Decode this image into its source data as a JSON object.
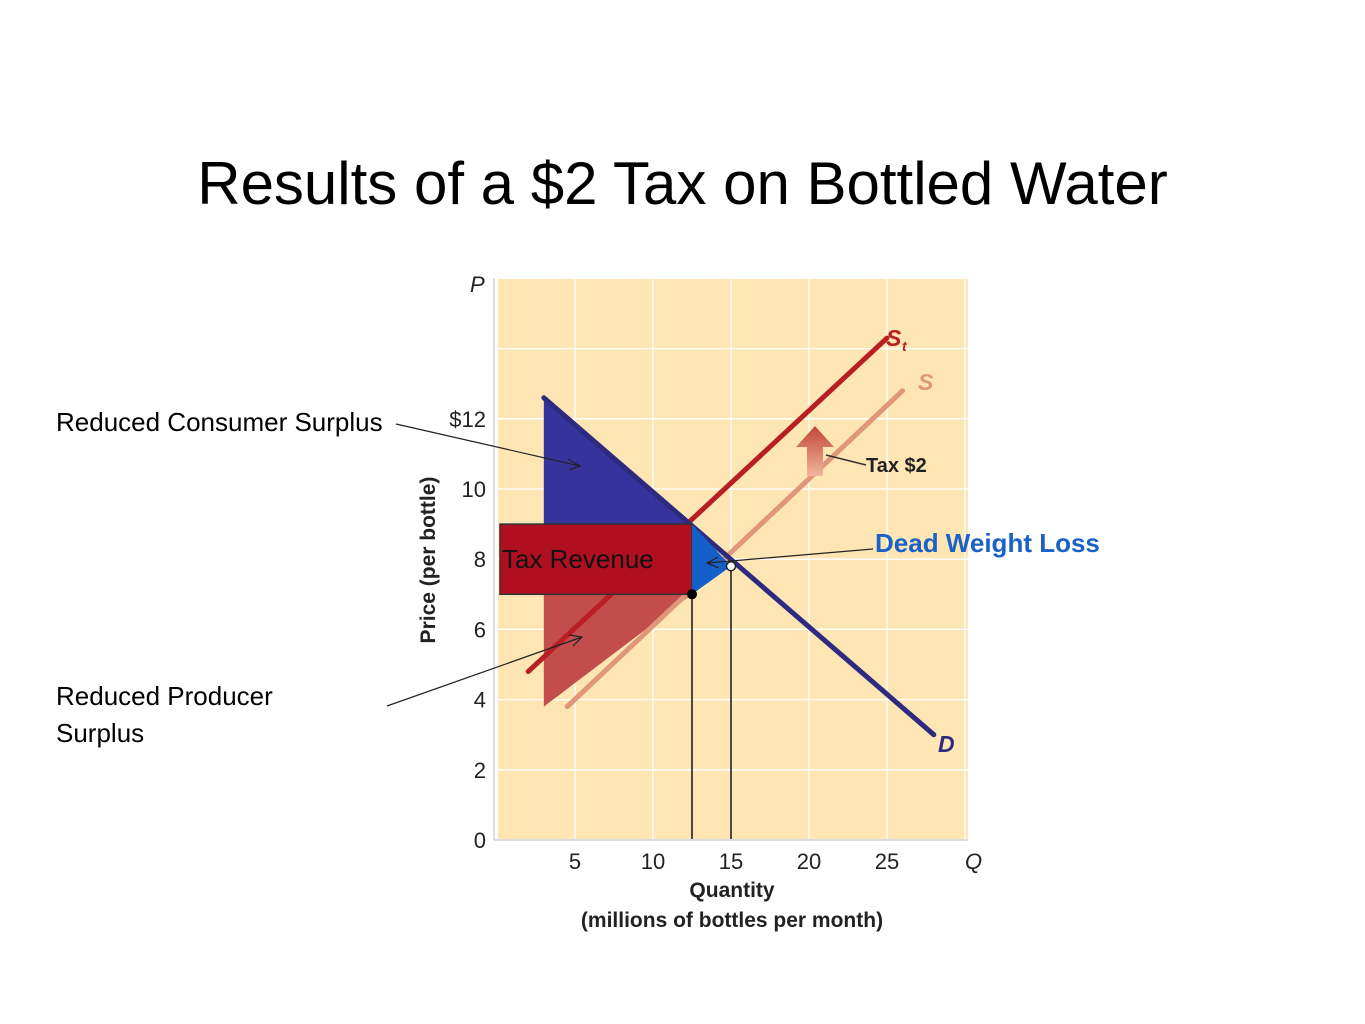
{
  "title": "Results of a $2 Tax on Bottled Water",
  "annotations": {
    "reduced_consumer_surplus": "Reduced Consumer Surplus",
    "reduced_producer_surplus": "Reduced Producer Surplus",
    "tax_revenue": "Tax Revenue",
    "dead_weight_loss": "Dead Weight Loss",
    "tax_label": "Tax $2"
  },
  "colors": {
    "plot_background": "#fde6b4",
    "demand": "#2e2a80",
    "supply": "#e0967a",
    "supply_taxed": "#b81e22",
    "consumer_surplus_fill": "#35349c",
    "producer_surplus_fill": "#c24d4b",
    "tax_revenue_fill": "#b00f22",
    "dead_weight_loss_fill": "#1560c8",
    "dead_weight_loss_text": "#1a62c8"
  },
  "chart_data": {
    "type": "line",
    "title": "",
    "xlabel": "Quantity",
    "xlabel_sub": "(millions of bottles per month)",
    "ylabel": "Price (per bottle)",
    "x_axis_symbol": "Q",
    "y_axis_symbol": "P",
    "xlim": [
      0,
      30
    ],
    "ylim": [
      0,
      16
    ],
    "x_ticks": [
      5,
      10,
      15,
      20,
      25
    ],
    "x_tick_labels": [
      "5",
      "10",
      "15",
      "20",
      "25"
    ],
    "y_ticks": [
      0,
      2,
      4,
      6,
      8,
      10,
      12
    ],
    "y_tick_labels": [
      "0",
      "2",
      "4",
      "6",
      "8",
      "10",
      "$12"
    ],
    "grid": true,
    "series": [
      {
        "name": "D",
        "x": [
          3,
          28
        ],
        "y": [
          12.6,
          3.0
        ]
      },
      {
        "name": "S",
        "x": [
          4.5,
          26
        ],
        "y": [
          3.8,
          12.8
        ]
      },
      {
        "name": "St",
        "x": [
          2,
          25
        ],
        "y": [
          4.8,
          14.3
        ]
      }
    ],
    "equilibrium_before": {
      "quantity": 15,
      "price": 7.8
    },
    "equilibrium_after": {
      "quantity": 12.5,
      "consumer_price": 9.0,
      "producer_price": 7.0
    },
    "tax": 2,
    "regions": {
      "consumer_surplus_reduced": [
        [
          3,
          12.6
        ],
        [
          3,
          9.0
        ],
        [
          12.5,
          9.0
        ]
      ],
      "producer_surplus_reduced": [
        [
          3,
          7.0
        ],
        [
          12.5,
          7.0
        ],
        [
          3,
          3.8
        ]
      ],
      "tax_revenue": [
        [
          0,
          7.0
        ],
        [
          12.5,
          9.0
        ]
      ],
      "dead_weight_loss": [
        [
          12.5,
          9.0
        ],
        [
          15,
          7.8
        ],
        [
          12.5,
          7.0
        ]
      ]
    }
  }
}
